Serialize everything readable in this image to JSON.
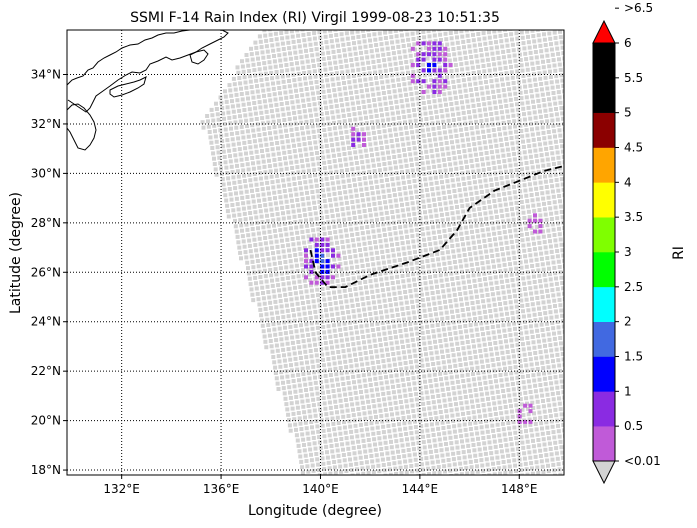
{
  "chart_data": {
    "type": "heatmap",
    "title": "SSMI F-14 Rain Index (RI) Virgil 1999-08-23 10:51:35",
    "xlabel": "Longitude (degree)",
    "ylabel": "Latitude (degree)",
    "xlim": [
      129.8,
      149.8
    ],
    "ylim": [
      17.8,
      35.8
    ],
    "xticks": [
      132,
      136,
      140,
      144,
      148
    ],
    "yticks": [
      18,
      20,
      22,
      24,
      26,
      28,
      30,
      32,
      34
    ],
    "xtick_labels": [
      "132°E",
      "136°E",
      "140°E",
      "144°E",
      "148°E"
    ],
    "ytick_labels": [
      "18°N",
      "20°N",
      "22°N",
      "24°N",
      "26°N",
      "28°N",
      "30°N",
      "32°N",
      "34°N"
    ],
    "grid": true,
    "colorbar": {
      "label": "RI",
      "tick_labels": [
        "<0.01",
        "0.5",
        "1",
        "1.5",
        "2",
        "2.5",
        "3",
        "3.5",
        "4",
        "4.5",
        "5",
        "5.5",
        "6",
        ">6.5"
      ],
      "under_color": "#d3d3d3",
      "over_color": "#ff0000",
      "colors": [
        "#c05ad8",
        "#8a2be2",
        "#0000ff",
        "#4169e1",
        "#00ffff",
        "#00ff00",
        "#7fff00",
        "#ffff00",
        "#ffa500",
        "#8b0000",
        "#000000",
        "#000000"
      ]
    },
    "swath": {
      "color": "#d3d3d3",
      "corners": [
        [
          135.2,
          32.1
        ],
        [
          138.2,
          36.6
        ],
        [
          150.5,
          36.6
        ],
        [
          150.5,
          17.6
        ],
        [
          139.3,
          17.8
        ]
      ]
    },
    "rain_clusters": [
      {
        "lon": 144.4,
        "lat": 34.3,
        "category": 2,
        "spread": 0.9
      },
      {
        "lon": 140.0,
        "lat": 26.5,
        "category": 3,
        "spread": 0.8
      },
      {
        "lon": 141.5,
        "lat": 31.5,
        "category": 1,
        "spread": 0.4
      },
      {
        "lon": 148.6,
        "lat": 28.0,
        "category": 0,
        "spread": 0.4
      },
      {
        "lon": 148.2,
        "lat": 20.3,
        "category": 0,
        "spread": 0.4
      }
    ],
    "storm_track": {
      "style": "dashed",
      "color": "#000000",
      "lon": [
        139.6,
        139.8,
        140.3,
        141.0,
        142.0,
        143.5,
        144.8,
        145.5,
        146.0,
        147.0,
        148.0,
        149.0,
        149.8
      ],
      "lat": [
        26.9,
        26.0,
        25.4,
        25.4,
        25.9,
        26.4,
        26.9,
        27.7,
        28.6,
        29.3,
        29.7,
        30.1,
        30.3
      ]
    }
  }
}
